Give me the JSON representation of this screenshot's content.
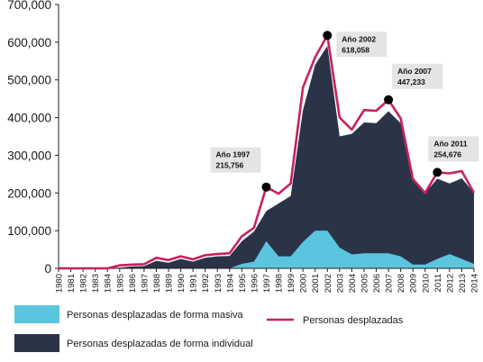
{
  "chart_data": {
    "type": "area",
    "x": [
      1980,
      1981,
      1982,
      1983,
      1984,
      1985,
      1986,
      1987,
      1988,
      1989,
      1990,
      1991,
      1992,
      1993,
      1994,
      1995,
      1996,
      1997,
      1998,
      1999,
      2000,
      2001,
      2002,
      2003,
      2004,
      2005,
      2006,
      2007,
      2008,
      2009,
      2010,
      2011,
      2012,
      2013,
      2014
    ],
    "x_tick_labels": [
      "1980",
      "1981",
      "1982",
      "1983",
      "1984",
      "1985",
      "1986",
      "1987",
      "1988",
      "1989",
      "1990",
      "1991",
      "1992",
      "1993",
      "1994",
      "1995",
      "1996",
      "1997",
      "1998",
      "1999",
      "2000",
      "2001",
      "2002",
      "2003",
      "2004",
      "2005",
      "2006",
      "2007",
      "2008",
      "2009",
      "2010",
      "2011",
      "2012",
      "2013",
      "2014"
    ],
    "ylim": [
      0,
      700000
    ],
    "y_ticks": [
      0,
      100000,
      200000,
      300000,
      400000,
      500000,
      600000,
      700000
    ],
    "y_tick_labels": [
      "0",
      "100,000",
      "200,000",
      "300,000",
      "400,000",
      "500,000",
      "600,000",
      "700,000"
    ],
    "series": [
      {
        "name": "Personas desplazadas de forma masiva",
        "kind": "area",
        "color": "#5bc4de",
        "values": [
          0,
          0,
          0,
          0,
          0,
          0,
          0,
          0,
          0,
          0,
          0,
          0,
          0,
          0,
          0,
          12000,
          18000,
          72000,
          32000,
          32000,
          70000,
          100000,
          100000,
          55000,
          37000,
          40000,
          40000,
          40000,
          32000,
          10000,
          10000,
          25000,
          38000,
          25000,
          12000
        ]
      },
      {
        "name": "Personas desplazadas de forma individual",
        "kind": "area",
        "color": "#2b3347",
        "values": [
          0,
          0,
          0,
          0,
          0,
          2000,
          5000,
          6000,
          20000,
          15000,
          25000,
          18000,
          28000,
          32000,
          33000,
          60000,
          80000,
          80000,
          140000,
          160000,
          350000,
          440000,
          490000,
          295000,
          320000,
          347000,
          345000,
          377000,
          353000,
          230000,
          190000,
          213000,
          187000,
          214000,
          188000
        ]
      },
      {
        "name": "Personas desplazadas",
        "kind": "line",
        "color": "#c8215f",
        "values": [
          0,
          0,
          0,
          0,
          0,
          8000,
          10000,
          11000,
          28000,
          22000,
          32000,
          24000,
          35000,
          38000,
          40000,
          85000,
          108000,
          215756,
          198000,
          225000,
          480000,
          560000,
          618058,
          400000,
          368000,
          420000,
          418000,
          447233,
          398000,
          237000,
          200000,
          254676,
          252000,
          258000,
          200000
        ]
      }
    ],
    "annotations": [
      {
        "line1": "Año 1997",
        "line2": "215,756",
        "x": 1997,
        "y": 215756
      },
      {
        "line1": "Año 2002",
        "line2": "618,058",
        "x": 2002,
        "y": 618058
      },
      {
        "line1": "Año 2007",
        "line2": "447,233",
        "x": 2007,
        "y": 447233
      },
      {
        "line1": "Año 2011",
        "line2": "254,676",
        "x": 2011,
        "y": 254676
      }
    ],
    "legend": [
      {
        "label": "Personas desplazadas de forma masiva",
        "marker": "box",
        "color": "#5bc4de"
      },
      {
        "label": "Personas desplazadas de forma individual",
        "marker": "box",
        "color": "#2b3347"
      },
      {
        "label": "Personas desplazadas",
        "marker": "line",
        "color": "#c8215f"
      }
    ],
    "legend_position": "bottom",
    "grid": false,
    "annotation_box_color": "#e4e4e4",
    "axis_color": "#222222"
  }
}
